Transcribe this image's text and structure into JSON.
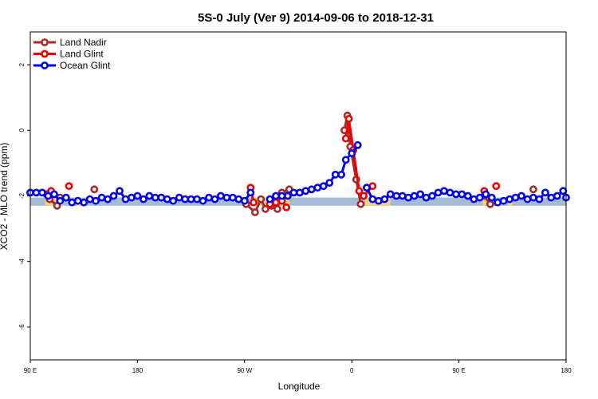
{
  "chart_data": {
    "type": "line",
    "title": "5S-0 July (Ver 9)   2014-09-06 to 2018-12-31",
    "xlabel": "Longitude",
    "ylabel": "XCO2 - MLO trend (ppm)",
    "xlim": [
      90,
      450
    ],
    "ylim": [
      -7,
      3
    ],
    "x_ticks": [
      {
        "value": 90,
        "label": "90 E"
      },
      {
        "value": 162,
        "label": "180"
      },
      {
        "value": 234,
        "label": "90 W"
      },
      {
        "value": 306,
        "label": "0"
      },
      {
        "value": 378,
        "label": "90 E"
      },
      {
        "value": 450,
        "label": "180"
      }
    ],
    "y_ticks": [
      {
        "value": 2,
        "label": "2"
      },
      {
        "value": 0,
        "label": "0"
      },
      {
        "value": -2,
        "label": "-2"
      },
      {
        "value": -4,
        "label": "-4"
      },
      {
        "value": -6,
        "label": "-6"
      }
    ],
    "legend_position": "top-left",
    "grid": false,
    "surface_bar": {
      "y_range": [
        -2.3,
        -2.05
      ],
      "ocean_color": "#a5bcd9",
      "land_color": "#f7d27a",
      "land_segments": [
        [
          100,
          112
        ],
        [
          121,
          125
        ],
        [
          240,
          264
        ],
        [
          315,
          332
        ],
        [
          394,
          399
        ],
        [
          411,
          414
        ]
      ]
    },
    "series": [
      {
        "name": "Land Nadir",
        "color": "#a52a2a",
        "points": [],
        "segments": [
          [
            [
              101,
              -1.95
            ],
            [
              103,
              -2.1
            ],
            [
              108,
              -2.3
            ],
            [
              110,
              -2.05
            ]
          ],
          [
            [
              133,
              -1.8
            ]
          ],
          [
            [
              235,
              -2.25
            ],
            [
              241,
              -2.5
            ],
            [
              245,
              -2.1
            ],
            [
              248,
              -2.4
            ],
            [
              252,
              -2.3
            ],
            [
              256,
              -2.4
            ],
            [
              259,
              -1.9
            ],
            [
              264,
              -1.8
            ]
          ],
          [
            [
              301,
              0.0
            ],
            [
              303,
              0.45
            ],
            [
              305,
              -0.5
            ],
            [
              309,
              -1.5
            ],
            [
              312,
              -2.25
            ]
          ],
          [
            [
              395,
              -2.0
            ],
            [
              399,
              -2.25
            ]
          ],
          [
            [
              428,
              -1.8
            ]
          ]
        ]
      },
      {
        "name": "Land Glint",
        "color": "#ee0000",
        "segments": [
          [
            [
              104,
              -1.85
            ]
          ],
          [
            [
              116,
              -1.7
            ]
          ],
          [
            [
              238,
              -1.75
            ],
            [
              240,
              -2.2
            ]
          ],
          [
            [
              251,
              -2.25
            ],
            [
              255,
              -2.2
            ],
            [
              259,
              -2.15
            ],
            [
              262,
              -2.35
            ]
          ],
          [
            [
              302,
              -0.25
            ],
            [
              304,
              0.35
            ],
            [
              307,
              -0.6
            ],
            [
              311,
              -1.85
            ],
            [
              314,
              -2.0
            ],
            [
              320,
              -1.7
            ]
          ],
          [
            [
              395,
              -1.85
            ]
          ],
          [
            [
              403,
              -1.7
            ]
          ]
        ]
      },
      {
        "name": "Ocean Glint",
        "color": "#0000ee",
        "segments": [
          [
            [
              90,
              -1.9
            ],
            [
              94,
              -1.9
            ],
            [
              98,
              -1.9
            ],
            [
              102,
              -2.0
            ],
            [
              106,
              -1.95
            ],
            [
              110,
              -2.15
            ],
            [
              114,
              -2.05
            ],
            [
              118,
              -2.2
            ],
            [
              122,
              -2.15
            ],
            [
              126,
              -2.2
            ],
            [
              130,
              -2.1
            ],
            [
              134,
              -2.15
            ],
            [
              138,
              -2.05
            ],
            [
              142,
              -2.1
            ],
            [
              146,
              -2.0
            ],
            [
              150,
              -1.85
            ],
            [
              154,
              -2.1
            ],
            [
              158,
              -2.05
            ],
            [
              162,
              -2.0
            ],
            [
              166,
              -2.1
            ],
            [
              170,
              -2.0
            ],
            [
              174,
              -2.05
            ],
            [
              178,
              -2.05
            ],
            [
              182,
              -2.1
            ],
            [
              186,
              -2.15
            ],
            [
              190,
              -2.05
            ],
            [
              194,
              -2.1
            ],
            [
              198,
              -2.1
            ],
            [
              202,
              -2.1
            ],
            [
              206,
              -2.15
            ],
            [
              210,
              -2.05
            ],
            [
              214,
              -2.1
            ],
            [
              218,
              -2.0
            ],
            [
              222,
              -2.05
            ],
            [
              226,
              -2.05
            ],
            [
              230,
              -2.1
            ],
            [
              234,
              -2.15
            ],
            [
              238,
              -1.9
            ]
          ],
          [
            [
              251,
              -2.1
            ],
            [
              255,
              -2.0
            ],
            [
              259,
              -2.0
            ],
            [
              263,
              -2.0
            ],
            [
              267,
              -1.9
            ],
            [
              271,
              -1.9
            ],
            [
              275,
              -1.85
            ],
            [
              279,
              -1.8
            ],
            [
              283,
              -1.75
            ],
            [
              287,
              -1.7
            ],
            [
              291,
              -1.6
            ],
            [
              295,
              -1.35
            ],
            [
              299,
              -1.35
            ],
            [
              302,
              -0.9
            ],
            [
              306,
              -0.7
            ],
            [
              310,
              -0.45
            ]
          ],
          [
            [
              316,
              -1.75
            ],
            [
              320,
              -2.1
            ],
            [
              324,
              -2.15
            ],
            [
              328,
              -2.1
            ],
            [
              332,
              -1.95
            ],
            [
              336,
              -2.0
            ],
            [
              340,
              -2.0
            ],
            [
              344,
              -2.05
            ],
            [
              348,
              -2.0
            ],
            [
              352,
              -1.95
            ],
            [
              356,
              -2.05
            ],
            [
              360,
              -2.0
            ],
            [
              364,
              -1.9
            ],
            [
              368,
              -1.85
            ],
            [
              372,
              -1.9
            ],
            [
              376,
              -1.95
            ],
            [
              380,
              -1.95
            ],
            [
              384,
              -2.0
            ],
            [
              388,
              -2.1
            ],
            [
              392,
              -2.05
            ],
            [
              396,
              -1.95
            ],
            [
              400,
              -2.05
            ],
            [
              404,
              -2.2
            ],
            [
              408,
              -2.15
            ],
            [
              412,
              -2.1
            ],
            [
              416,
              -2.05
            ],
            [
              420,
              -2.0
            ],
            [
              424,
              -2.1
            ],
            [
              428,
              -2.05
            ],
            [
              432,
              -2.1
            ],
            [
              436,
              -1.9
            ],
            [
              440,
              -2.05
            ],
            [
              444,
              -2.0
            ],
            [
              448,
              -1.85
            ],
            [
              450,
              -2.05
            ]
          ]
        ]
      }
    ]
  }
}
